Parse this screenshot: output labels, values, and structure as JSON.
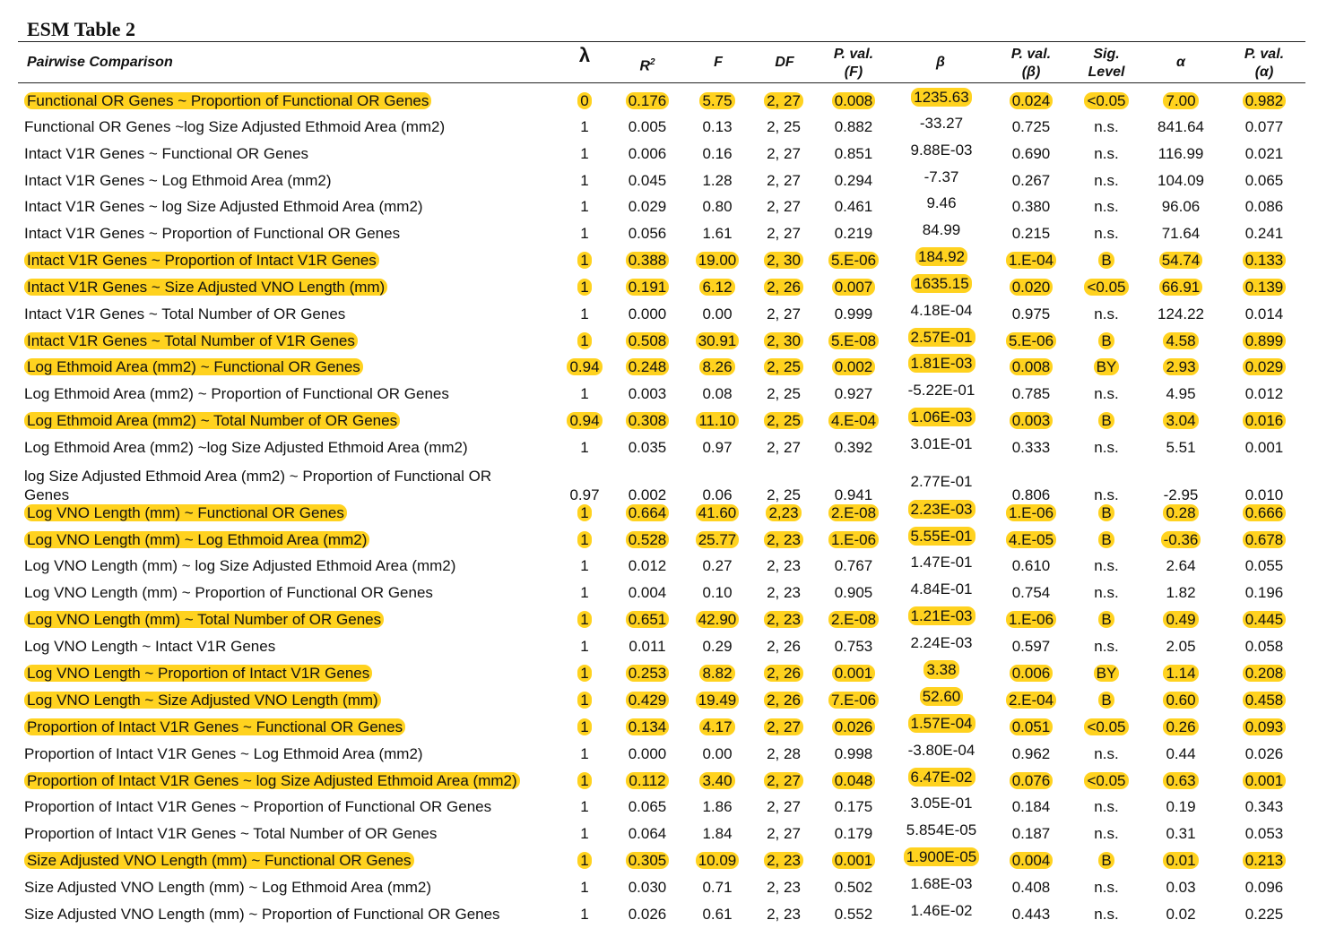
{
  "title": "ESM Table 2",
  "headers": {
    "comparison": "Pairwise Comparison",
    "lambda": "λ",
    "r2_base": "R",
    "r2_sup": "2",
    "f": "F",
    "df": "DF",
    "pval_f_1": "P. val.",
    "pval_f_2": "(F)",
    "beta": "β",
    "pval_b_1": "P. val.",
    "pval_b_2": "(β)",
    "sig_1": "Sig.",
    "sig_2": "Level",
    "alpha": "α",
    "pval_a_1": "P. val.",
    "pval_a_2": "(α)"
  },
  "highlight_color": "#ffd21f",
  "rows": [
    {
      "comparison": "Functional OR Genes ~ Proportion of Functional OR Genes",
      "lambda": "0",
      "r2": "0.176",
      "f": "5.75",
      "df": "2, 27",
      "pf": "0.008",
      "beta": "1235.63",
      "pb": "0.024",
      "sig": "<0.05",
      "alpha": "7.00",
      "pa": "0.982",
      "highlighted": true
    },
    {
      "comparison": "Functional OR Genes ~log Size Adjusted Ethmoid Area (mm2)",
      "lambda": "1",
      "r2": "0.005",
      "f": "0.13",
      "df": "2, 25",
      "pf": "0.882",
      "beta": "-33.27",
      "pb": "0.725",
      "sig": "n.s.",
      "alpha": "841.64",
      "pa": "0.077",
      "highlighted": false
    },
    {
      "comparison": "Intact V1R Genes ~ Functional OR Genes",
      "lambda": "1",
      "r2": "0.006",
      "f": "0.16",
      "df": "2, 27",
      "pf": "0.851",
      "beta": "9.88E-03",
      "pb": "0.690",
      "sig": "n.s.",
      "alpha": "116.99",
      "pa": "0.021",
      "highlighted": false
    },
    {
      "comparison": "Intact V1R Genes ~ Log Ethmoid Area (mm2)",
      "lambda": "1",
      "r2": "0.045",
      "f": "1.28",
      "df": "2, 27",
      "pf": "0.294",
      "beta": "-7.37",
      "pb": "0.267",
      "sig": "n.s.",
      "alpha": "104.09",
      "pa": "0.065",
      "highlighted": false
    },
    {
      "comparison": "Intact V1R Genes ~ log Size Adjusted Ethmoid Area (mm2)",
      "lambda": "1",
      "r2": "0.029",
      "f": "0.80",
      "df": "2, 27",
      "pf": "0.461",
      "beta": "9.46",
      "pb": "0.380",
      "sig": "n.s.",
      "alpha": "96.06",
      "pa": "0.086",
      "highlighted": false
    },
    {
      "comparison": "Intact V1R Genes ~ Proportion of Functional OR Genes",
      "lambda": "1",
      "r2": "0.056",
      "f": "1.61",
      "df": "2, 27",
      "pf": "0.219",
      "beta": "84.99",
      "pb": "0.215",
      "sig": "n.s.",
      "alpha": "71.64",
      "pa": "0.241",
      "highlighted": false
    },
    {
      "comparison": "Intact V1R Genes ~ Proportion of Intact V1R Genes",
      "lambda": "1",
      "r2": "0.388",
      "f": "19.00",
      "df": "2, 30",
      "pf": "5.E-06",
      "beta": "184.92",
      "pb": "1.E-04",
      "sig": "B",
      "alpha": "54.74",
      "pa": "0.133",
      "highlighted": true
    },
    {
      "comparison": "Intact V1R Genes ~ Size Adjusted VNO Length (mm)",
      "lambda": "1",
      "r2": "0.191",
      "f": "6.12",
      "df": "2, 26",
      "pf": "0.007",
      "beta": "1635.15",
      "pb": "0.020",
      "sig": "<0.05",
      "alpha": "66.91",
      "pa": "0.139",
      "highlighted": true
    },
    {
      "comparison": "Intact V1R Genes ~ Total Number of OR Genes",
      "lambda": "1",
      "r2": "0.000",
      "f": "0.00",
      "df": "2, 27",
      "pf": "0.999",
      "beta": "4.18E-04",
      "pb": "0.975",
      "sig": "n.s.",
      "alpha": "124.22",
      "pa": "0.014",
      "highlighted": false
    },
    {
      "comparison": "Intact V1R Genes ~ Total Number of V1R Genes",
      "lambda": "1",
      "r2": "0.508",
      "f": "30.91",
      "df": "2, 30",
      "pf": "5.E-08",
      "beta": "2.57E-01",
      "pb": "5.E-06",
      "sig": "B",
      "alpha": "4.58",
      "pa": "0.899",
      "highlighted": true
    },
    {
      "comparison": "Log Ethmoid Area (mm2) ~ Functional OR Genes",
      "lambda": "0.94",
      "r2": "0.248",
      "f": "8.26",
      "df": "2, 25",
      "pf": "0.002",
      "beta": "1.81E-03",
      "pb": "0.008",
      "sig": "BY",
      "alpha": "2.93",
      "pa": "0.029",
      "highlighted": true
    },
    {
      "comparison": "Log Ethmoid Area (mm2) ~ Proportion of Functional OR Genes",
      "lambda": "1",
      "r2": "0.003",
      "f": "0.08",
      "df": "2, 25",
      "pf": "0.927",
      "beta": "-5.22E-01",
      "pb": "0.785",
      "sig": "n.s.",
      "alpha": "4.95",
      "pa": "0.012",
      "highlighted": false
    },
    {
      "comparison": "Log Ethmoid Area (mm2) ~ Total Number of OR Genes",
      "lambda": "0.94",
      "r2": "0.308",
      "f": "11.10",
      "df": "2, 25",
      "pf": "4.E-04",
      "beta": "1.06E-03",
      "pb": "0.003",
      "sig": "B",
      "alpha": "3.04",
      "pa": "0.016",
      "highlighted": true
    },
    {
      "comparison": "Log Ethmoid Area (mm2) ~log Size Adjusted Ethmoid Area (mm2)",
      "lambda": "1",
      "r2": "0.035",
      "f": "0.97",
      "df": "2, 27",
      "pf": "0.392",
      "beta": "3.01E-01",
      "pb": "0.333",
      "sig": "n.s.",
      "alpha": "5.51",
      "pa": "0.001",
      "highlighted": false
    },
    {
      "comparison": "log Size Adjusted Ethmoid Area (mm2) ~ Proportion of Functional OR",
      "comparison2": "Genes",
      "lambda": "0.97",
      "r2": "0.002",
      "f": "0.06",
      "df": "2, 25",
      "pf": "0.941",
      "beta": "2.77E-01",
      "pb": "0.806",
      "sig": "n.s.",
      "alpha": "-2.95",
      "pa": "0.010",
      "highlighted": false
    },
    {
      "comparison": "Log VNO Length (mm) ~ Functional OR Genes",
      "lambda": "1",
      "r2": "0.664",
      "f": "41.60",
      "df": "2,23",
      "pf": "2.E-08",
      "beta": "2.23E-03",
      "pb": "1.E-06",
      "sig": "B",
      "alpha": "0.28",
      "pa": "0.666",
      "highlighted": true
    },
    {
      "comparison": "Log VNO Length (mm) ~ Log Ethmoid Area (mm2)",
      "lambda": "1",
      "r2": "0.528",
      "f": "25.77",
      "df": "2, 23",
      "pf": "1.E-06",
      "beta": "5.55E-01",
      "pb": "4.E-05",
      "sig": "B",
      "alpha": "-0.36",
      "pa": "0.678",
      "highlighted": true
    },
    {
      "comparison": "Log VNO Length (mm) ~ log Size Adjusted Ethmoid Area (mm2)",
      "lambda": "1",
      "r2": "0.012",
      "f": "0.27",
      "df": "2, 23",
      "pf": "0.767",
      "beta": "1.47E-01",
      "pb": "0.610",
      "sig": "n.s.",
      "alpha": "2.64",
      "pa": "0.055",
      "highlighted": false
    },
    {
      "comparison": "Log VNO Length (mm) ~ Proportion of Functional OR Genes",
      "lambda": "1",
      "r2": "0.004",
      "f": "0.10",
      "df": "2, 23",
      "pf": "0.905",
      "beta": "4.84E-01",
      "pb": "0.754",
      "sig": "n.s.",
      "alpha": "1.82",
      "pa": "0.196",
      "highlighted": false
    },
    {
      "comparison": "Log VNO Length (mm) ~ Total Number of OR Genes",
      "lambda": "1",
      "r2": "0.651",
      "f": "42.90",
      "df": "2, 23",
      "pf": "2.E-08",
      "beta": "1.21E-03",
      "pb": "1.E-06",
      "sig": "B",
      "alpha": "0.49",
      "pa": "0.445",
      "highlighted": true
    },
    {
      "comparison": "Log VNO Length ~ Intact V1R Genes",
      "lambda": "1",
      "r2": "0.011",
      "f": "0.29",
      "df": "2, 26",
      "pf": "0.753",
      "beta": "2.24E-03",
      "pb": "0.597",
      "sig": "n.s.",
      "alpha": "2.05",
      "pa": "0.058",
      "highlighted": false
    },
    {
      "comparison": "Log VNO Length ~ Proportion of Intact V1R Genes",
      "lambda": "1",
      "r2": "0.253",
      "f": "8.82",
      "df": "2, 26",
      "pf": "0.001",
      "beta": "3.38",
      "pb": "0.006",
      "sig": "BY",
      "alpha": "1.14",
      "pa": "0.208",
      "highlighted": true
    },
    {
      "comparison": "Log VNO Length ~ Size Adjusted VNO Length (mm)",
      "lambda": "1",
      "r2": "0.429",
      "f": "19.49",
      "df": "2, 26",
      "pf": "7.E-06",
      "beta": "52.60",
      "pb": "2.E-04",
      "sig": "B",
      "alpha": "0.60",
      "pa": "0.458",
      "highlighted": true
    },
    {
      "comparison": "Proportion of Intact V1R Genes ~ Functional OR Genes",
      "lambda": "1",
      "r2": "0.134",
      "f": "4.17",
      "df": "2, 27",
      "pf": "0.026",
      "beta": "1.57E-04",
      "pb": "0.051",
      "sig": "<0.05",
      "alpha": "0.26",
      "pa": "0.093",
      "highlighted": true
    },
    {
      "comparison": "Proportion of Intact V1R Genes ~ Log Ethmoid Area (mm2)",
      "lambda": "1",
      "r2": "0.000",
      "f": "0.00",
      "df": "2, 28",
      "pf": "0.998",
      "beta": "-3.80E-04",
      "pb": "0.962",
      "sig": "n.s.",
      "alpha": "0.44",
      "pa": "0.026",
      "highlighted": false
    },
    {
      "comparison": "Proportion of Intact V1R Genes ~ log Size Adjusted Ethmoid Area (mm2)",
      "lambda": "1",
      "r2": "0.112",
      "f": "3.40",
      "df": "2, 27",
      "pf": "0.048",
      "beta": "6.47E-02",
      "pb": "0.076",
      "sig": "<0.05",
      "alpha": "0.63",
      "pa": "0.001",
      "highlighted": true
    },
    {
      "comparison": "Proportion of Intact V1R Genes ~ Proportion of Functional OR Genes",
      "lambda": "1",
      "r2": "0.065",
      "f": "1.86",
      "df": "2, 27",
      "pf": "0.175",
      "beta": "3.05E-01",
      "pb": "0.184",
      "sig": "n.s.",
      "alpha": "0.19",
      "pa": "0.343",
      "highlighted": false
    },
    {
      "comparison": "Proportion of Intact V1R Genes ~ Total Number of OR Genes",
      "lambda": "1",
      "r2": "0.064",
      "f": "1.84",
      "df": "2, 27",
      "pf": "0.179",
      "beta": "5.854E-05",
      "pb": "0.187",
      "sig": "n.s.",
      "alpha": "0.31",
      "pa": "0.053",
      "highlighted": false
    },
    {
      "comparison": "Size Adjusted VNO Length (mm) ~ Functional OR Genes",
      "lambda": "1",
      "r2": "0.305",
      "f": "10.09",
      "df": "2, 23",
      "pf": "0.001",
      "beta": "1.900E-05",
      "pb": "0.004",
      "sig": "B",
      "alpha": "0.01",
      "pa": "0.213",
      "highlighted": true
    },
    {
      "comparison": "Size Adjusted VNO Length (mm) ~ Log Ethmoid Area (mm2)",
      "lambda": "1",
      "r2": "0.030",
      "f": "0.71",
      "df": "2, 23",
      "pf": "0.502",
      "beta": "1.68E-03",
      "pb": "0.408",
      "sig": "n.s.",
      "alpha": "0.03",
      "pa": "0.096",
      "highlighted": false
    },
    {
      "comparison": "Size Adjusted VNO Length (mm) ~ Proportion of Functional OR Genes",
      "lambda": "1",
      "r2": "0.026",
      "f": "0.61",
      "df": "2, 23",
      "pf": "0.552",
      "beta": "1.46E-02",
      "pb": "0.443",
      "sig": "n.s.",
      "alpha": "0.02",
      "pa": "0.225",
      "highlighted": false
    }
  ]
}
